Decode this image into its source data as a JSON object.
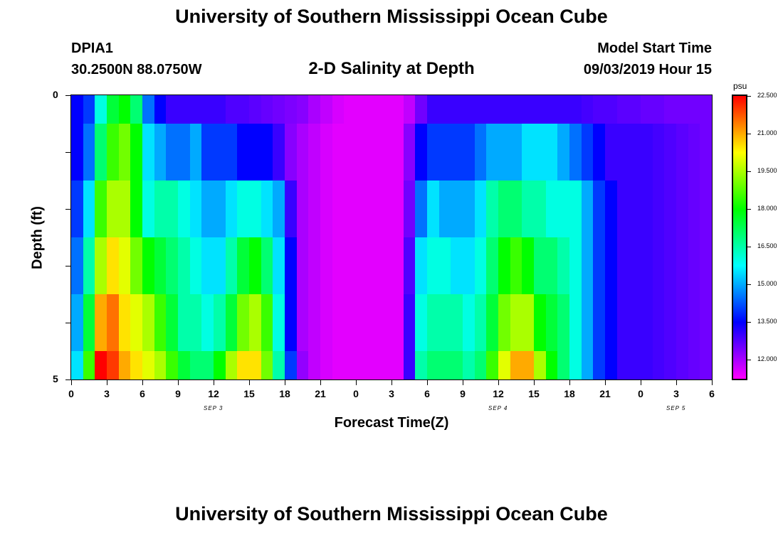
{
  "header": {
    "title": "University of Southern Mississippi Ocean Cube",
    "station_id": "DPIA1",
    "coords": "30.2500N 88.0750W",
    "subtitle": "2-D Salinity at Depth",
    "start_label": "Model Start Time",
    "start_time": "09/03/2019 Hour 15",
    "footer_title": "University of Southern Mississippi Ocean Cube"
  },
  "chart_data": {
    "type": "heatmap",
    "title": "2-D Salinity at Depth",
    "xlabel": "Forecast Time(Z)",
    "ylabel": "Depth (ft)",
    "x_tick_labels": [
      "0",
      "3",
      "6",
      "9",
      "12",
      "15",
      "18",
      "21",
      "0",
      "3",
      "6",
      "9",
      "12",
      "15",
      "18",
      "21",
      "0",
      "3",
      "6"
    ],
    "day_labels": [
      {
        "label": "SEP 3",
        "hour": 12
      },
      {
        "label": "SEP 4",
        "hour": 36
      },
      {
        "label": "SEP 5",
        "hour": 51
      }
    ],
    "x_range_hours": [
      0,
      54
    ],
    "y_tick_labels": [
      "0",
      "5"
    ],
    "ylim": [
      0,
      5
    ],
    "depth_layers": 5,
    "colorbar": {
      "unit": "psu",
      "range": [
        11.25,
        22.5
      ],
      "labels": [
        "22.500",
        "21.000",
        "19.500",
        "18.000",
        "16.500",
        "15.000",
        "13.500",
        "12.000"
      ],
      "label_values": [
        22.5,
        21.0,
        19.5,
        18.0,
        16.5,
        15.0,
        13.5,
        12.0
      ]
    },
    "times": [
      0,
      1,
      2,
      3,
      4,
      5,
      6,
      7,
      8,
      9,
      10,
      11,
      12,
      13,
      14,
      15,
      16,
      17,
      18,
      19,
      20,
      21,
      22,
      23,
      24,
      25,
      26,
      27,
      28,
      29,
      30,
      31,
      32,
      33,
      34,
      35,
      36,
      37,
      38,
      39,
      40,
      41,
      42,
      43,
      44,
      45,
      46,
      47,
      48,
      49,
      50,
      51,
      52,
      53
    ],
    "salinity_rows": [
      [
        13.5,
        14.0,
        16.0,
        17.5,
        18.0,
        17.0,
        14.5,
        13.5,
        13.0,
        13.0,
        13.0,
        13.0,
        13.0,
        12.8,
        12.8,
        12.7,
        12.6,
        12.5,
        12.4,
        12.3,
        12.0,
        11.8,
        11.6,
        11.5,
        11.5,
        11.5,
        11.5,
        11.5,
        11.8,
        12.5,
        13.0,
        13.0,
        13.0,
        13.0,
        13.0,
        13.0,
        13.0,
        13.0,
        13.0,
        13.0,
        13.0,
        13.0,
        13.0,
        12.9,
        12.8,
        12.8,
        12.7,
        12.7,
        12.6,
        12.6,
        12.5,
        12.5,
        12.5,
        12.5
      ],
      [
        13.5,
        14.5,
        17.0,
        18.5,
        19.0,
        18.0,
        15.5,
        15.0,
        14.5,
        14.5,
        15.0,
        14.0,
        14.0,
        14.0,
        13.5,
        13.5,
        13.5,
        13.0,
        12.3,
        12.0,
        11.8,
        11.6,
        11.5,
        11.5,
        11.5,
        11.5,
        11.5,
        11.5,
        12.3,
        13.5,
        14.0,
        14.0,
        14.0,
        14.0,
        14.5,
        15.0,
        15.0,
        15.0,
        15.5,
        15.5,
        15.5,
        15.0,
        14.5,
        14.0,
        13.5,
        13.0,
        13.0,
        13.0,
        13.0,
        12.9,
        12.8,
        12.7,
        12.6,
        12.5
      ],
      [
        14.0,
        15.5,
        18.5,
        19.5,
        19.5,
        18.0,
        16.0,
        16.5,
        16.5,
        16.0,
        15.5,
        15.0,
        15.0,
        15.5,
        16.0,
        16.0,
        15.5,
        15.0,
        13.0,
        12.0,
        11.8,
        11.6,
        11.5,
        11.5,
        11.5,
        11.5,
        11.5,
        11.5,
        12.5,
        14.5,
        15.5,
        15.0,
        15.0,
        15.0,
        15.5,
        16.5,
        17.0,
        17.0,
        16.5,
        16.5,
        16.0,
        16.0,
        16.0,
        15.0,
        14.0,
        13.5,
        13.0,
        13.0,
        13.0,
        12.9,
        12.8,
        12.7,
        12.6,
        12.5
      ],
      [
        14.5,
        16.5,
        19.5,
        20.5,
        20.0,
        19.0,
        18.0,
        17.5,
        17.0,
        16.5,
        16.0,
        15.5,
        15.5,
        16.5,
        17.5,
        18.0,
        17.0,
        15.5,
        13.5,
        12.0,
        11.8,
        11.6,
        11.5,
        11.5,
        11.5,
        11.5,
        11.5,
        11.5,
        12.8,
        15.5,
        16.0,
        16.0,
        15.5,
        15.5,
        16.0,
        17.0,
        18.0,
        18.5,
        18.0,
        17.0,
        17.0,
        16.5,
        16.0,
        15.0,
        14.0,
        13.5,
        13.0,
        13.0,
        13.0,
        12.9,
        12.8,
        12.7,
        12.6,
        12.5
      ],
      [
        15.0,
        17.5,
        21.0,
        21.5,
        20.5,
        20.0,
        19.5,
        18.5,
        17.5,
        16.5,
        16.5,
        16.0,
        16.5,
        17.5,
        19.0,
        19.5,
        18.5,
        16.0,
        13.5,
        12.0,
        11.8,
        11.6,
        11.5,
        11.5,
        11.5,
        11.5,
        11.5,
        11.5,
        13.0,
        16.0,
        16.5,
        16.5,
        16.5,
        16.0,
        16.5,
        17.5,
        19.0,
        19.5,
        19.5,
        18.0,
        17.5,
        17.0,
        16.0,
        15.0,
        14.0,
        13.5,
        13.0,
        13.0,
        13.0,
        12.9,
        12.8,
        12.7,
        12.6,
        12.5
      ],
      [
        15.5,
        18.5,
        22.5,
        22.0,
        21.0,
        20.5,
        20.0,
        19.5,
        18.5,
        17.5,
        17.0,
        17.0,
        18.0,
        19.5,
        20.5,
        20.5,
        19.0,
        16.5,
        14.0,
        12.2,
        11.8,
        11.6,
        11.5,
        11.5,
        11.5,
        11.5,
        11.5,
        11.5,
        13.0,
        16.5,
        17.0,
        17.0,
        17.0,
        16.5,
        17.0,
        18.5,
        20.0,
        21.0,
        21.0,
        19.5,
        18.0,
        17.0,
        16.0,
        15.0,
        14.0,
        13.5,
        13.0,
        13.0,
        13.0,
        12.9,
        12.8,
        12.7,
        12.6,
        12.5
      ]
    ]
  }
}
